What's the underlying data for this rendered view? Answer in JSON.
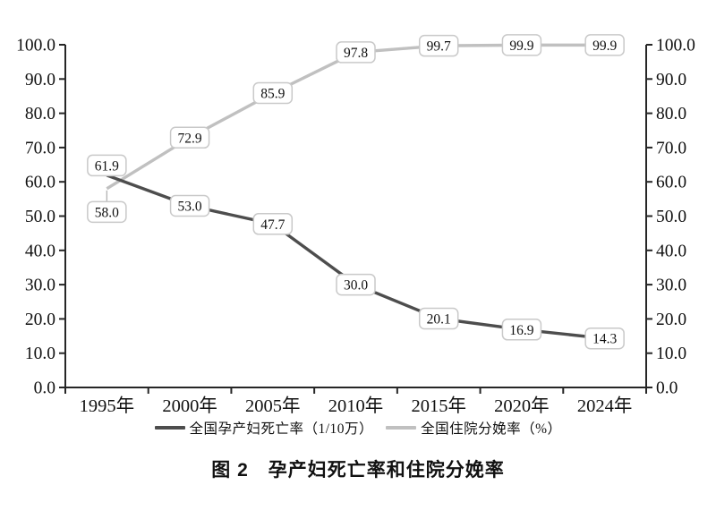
{
  "figure": {
    "caption": "图 2　孕产妇死亡率和住院分娩率"
  },
  "chart_data": {
    "type": "line",
    "categories": [
      "1995年",
      "2000年",
      "2005年",
      "2010年",
      "2015年",
      "2020年",
      "2024年"
    ],
    "series": [
      {
        "name": "全国孕产妇死亡率（1/10万）",
        "values": [
          61.9,
          53.0,
          47.7,
          30.0,
          20.1,
          16.9,
          14.3
        ],
        "color": "#4d4d4d",
        "label_offsets": {
          "0": -11
        },
        "leader_points": []
      },
      {
        "name": "全国住院分娩率（%）",
        "values": [
          58.0,
          72.9,
          85.9,
          97.8,
          99.7,
          99.9,
          99.9
        ],
        "color": "#c0c0c0",
        "label_offsets": {
          "0": 26
        },
        "leader_points": [
          0
        ]
      }
    ],
    "ylim": [
      0,
      100
    ],
    "y_ticks": [
      "0.0",
      "10.0",
      "20.0",
      "30.0",
      "40.0",
      "50.0",
      "60.0",
      "70.0",
      "80.0",
      "90.0",
      "100.0"
    ],
    "right_axis": true,
    "data_labels": true,
    "data_label_decimals": 1,
    "grid": false,
    "legend_position": "bottom",
    "axis_color": "#262626",
    "label_box": {
      "fill": "#ffffff",
      "border": "#c9c9c9"
    }
  }
}
